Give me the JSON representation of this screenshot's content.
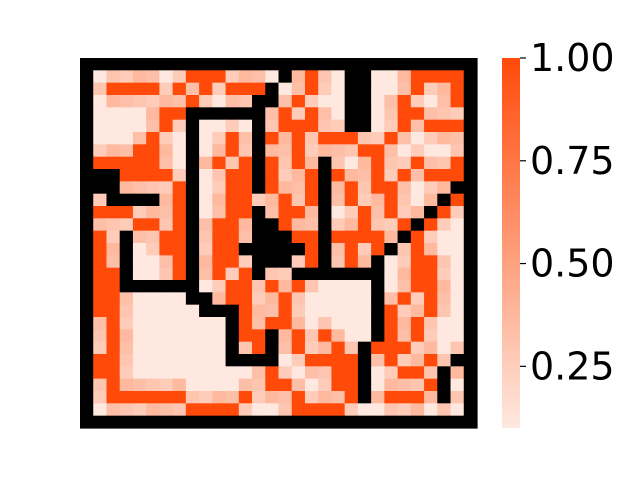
{
  "chart_data": {
    "type": "heatmap",
    "title": "",
    "xlabel": "",
    "ylabel": "",
    "grid_size": 30,
    "value_range": [
      0.1,
      1.0
    ],
    "colorscale": {
      "low": "#fee8df",
      "high": "#ff4a0a",
      "wall": "#000000"
    },
    "colorbar": {
      "position": "right",
      "ticks": [
        {
          "value": 0.25,
          "label": "0.25"
        },
        {
          "value": 0.5,
          "label": "0.50"
        },
        {
          "value": 0.75,
          "label": "0.75"
        },
        {
          "value": 1.0,
          "label": "1.00"
        }
      ]
    },
    "walls": {
      "border": true,
      "segments": [
        {
          "orientation": "h",
          "y": 15,
          "x": [
            12,
            16
          ]
        },
        {
          "orientation": "v",
          "x": 14,
          "y": [
            2,
            3
          ]
        },
        {
          "orientation": "v",
          "x": 13,
          "y": [
            3,
            4
          ]
        },
        {
          "orientation": "h",
          "y": 4,
          "x": [
            8,
            12
          ]
        },
        {
          "orientation": "v",
          "x": 8,
          "y": [
            4,
            19
          ]
        },
        {
          "orientation": "h",
          "y": 19,
          "x": [
            8,
            9
          ]
        },
        {
          "orientation": "h",
          "y": 20,
          "x": [
            9,
            11
          ]
        },
        {
          "orientation": "v",
          "x": 11,
          "y": [
            20,
            24
          ]
        },
        {
          "orientation": "h",
          "y": 24,
          "x": [
            11,
            14
          ]
        },
        {
          "orientation": "v",
          "x": 14,
          "y": [
            22,
            24
          ]
        },
        {
          "orientation": "v",
          "x": 13,
          "y": [
            4,
            10
          ]
        },
        {
          "orientation": "v",
          "x": 13,
          "y": [
            12,
            17
          ]
        },
        {
          "orientation": "v",
          "x": 14,
          "y": [
            13,
            14
          ]
        },
        {
          "orientation": "h",
          "y": 14,
          "x": [
            14,
            15
          ]
        },
        {
          "orientation": "v",
          "x": 15,
          "y": [
            15,
            16
          ]
        },
        {
          "orientation": "h",
          "y": 17,
          "x": [
            16,
            22
          ]
        },
        {
          "orientation": "v",
          "x": 22,
          "y": [
            17,
            22
          ]
        },
        {
          "orientation": "h",
          "y": 22,
          "x": [
            22,
            22
          ]
        },
        {
          "orientation": "v",
          "x": 21,
          "y": [
            23,
            27
          ]
        },
        {
          "orientation": "v",
          "x": 18,
          "y": [
            8,
            16
          ]
        },
        {
          "orientation": "v",
          "x": 21,
          "y": [
            1,
            5
          ]
        },
        {
          "orientation": "h",
          "y": 5,
          "x": [
            20,
            21
          ]
        },
        {
          "orientation": "v",
          "x": 20,
          "y": [
            1,
            4
          ]
        },
        {
          "orientation": "v",
          "x": 29,
          "y": [
            7,
            23
          ]
        },
        {
          "orientation": "h",
          "y": 24,
          "x": [
            28,
            28
          ]
        },
        {
          "orientation": "v",
          "x": 27,
          "y": [
            25,
            27
          ]
        },
        {
          "orientation": "h",
          "y": 10,
          "x": [
            1,
            2
          ]
        },
        {
          "orientation": "h",
          "y": 9,
          "x": [
            1,
            2
          ]
        },
        {
          "orientation": "v",
          "x": 2,
          "y": [
            9,
            11
          ]
        },
        {
          "orientation": "h",
          "y": 11,
          "x": [
            2,
            5
          ]
        },
        {
          "orientation": "v",
          "x": 3,
          "y": [
            14,
            18
          ]
        },
        {
          "orientation": "h",
          "y": 18,
          "x": [
            3,
            8
          ]
        },
        {
          "orientation": "h",
          "y": 16,
          "x": [
            14,
            15
          ]
        },
        {
          "orientation": "diag",
          "from": [
            28,
            10
          ],
          "to": [
            22,
            16
          ]
        },
        {
          "orientation": "diag",
          "from": [
            15,
            1
          ],
          "to": [
            14,
            2
          ]
        },
        {
          "orientation": "diag",
          "from": [
            9,
            19
          ],
          "to": [
            11,
            21
          ]
        }
      ]
    },
    "flow": {
      "paths": [
        [
          [
            1,
            8
          ],
          [
            4,
            8
          ],
          [
            5,
            6
          ],
          [
            6,
            5
          ],
          [
            6,
            4
          ],
          [
            8,
            3
          ],
          [
            9,
            1
          ],
          [
            12,
            2
          ],
          [
            13,
            2
          ]
        ],
        [
          [
            1,
            12
          ],
          [
            3,
            12
          ],
          [
            5,
            13
          ],
          [
            6,
            14
          ],
          [
            7,
            16
          ],
          [
            7,
            17
          ]
        ],
        [
          [
            1,
            14
          ],
          [
            1,
            20
          ],
          [
            2,
            22
          ],
          [
            1,
            24
          ],
          [
            2,
            27
          ],
          [
            6,
            27
          ],
          [
            10,
            28
          ],
          [
            12,
            27
          ]
        ],
        [
          [
            1,
            16
          ],
          [
            2,
            17
          ],
          [
            2,
            26
          ]
        ],
        [
          [
            4,
            7
          ],
          [
            6,
            9
          ],
          [
            7,
            11
          ],
          [
            7,
            14
          ],
          [
            6,
            15
          ]
        ],
        [
          [
            3,
            9
          ],
          [
            6,
            9
          ]
        ],
        [
          [
            11,
            6
          ],
          [
            12,
            9
          ],
          [
            12,
            12
          ],
          [
            11,
            13
          ],
          [
            11,
            15
          ],
          [
            12,
            18
          ],
          [
            12,
            22
          ],
          [
            14,
            26
          ]
        ],
        [
          [
            10,
            8
          ],
          [
            11,
            10
          ],
          [
            10,
            14
          ],
          [
            10,
            17
          ],
          [
            11,
            19
          ]
        ],
        [
          [
            14,
            6
          ],
          [
            15,
            4
          ],
          [
            16,
            5
          ],
          [
            16,
            8
          ],
          [
            17,
            9
          ],
          [
            17,
            11
          ],
          [
            16,
            12
          ],
          [
            15,
            13
          ],
          [
            17,
            15
          ],
          [
            17,
            16
          ]
        ],
        [
          [
            13,
            8
          ],
          [
            14,
            8
          ],
          [
            14,
            10
          ],
          [
            15,
            11
          ],
          [
            15,
            12
          ]
        ],
        [
          [
            15,
            16
          ],
          [
            16,
            17
          ],
          [
            15,
            19
          ],
          [
            15,
            21
          ],
          [
            16,
            23
          ],
          [
            17,
            24
          ],
          [
            19,
            24
          ]
        ],
        [
          [
            14,
            18
          ],
          [
            15,
            20
          ],
          [
            14,
            21
          ],
          [
            13,
            22
          ]
        ],
        [
          [
            15,
            26
          ],
          [
            16,
            28
          ],
          [
            19,
            28
          ],
          [
            20,
            27
          ],
          [
            20,
            24
          ],
          [
            22,
            23
          ],
          [
            24,
            23
          ],
          [
            25,
            21
          ],
          [
            26,
            20
          ],
          [
            26,
            17
          ],
          [
            25,
            14
          ],
          [
            26,
            12
          ],
          [
            27,
            12
          ],
          [
            28,
            10
          ],
          [
            28,
            8
          ]
        ],
        [
          [
            17,
            1
          ],
          [
            16,
            3
          ],
          [
            17,
            5
          ],
          [
            18,
            6
          ],
          [
            20,
            6
          ],
          [
            21,
            7
          ],
          [
            22,
            8
          ],
          [
            22,
            10
          ],
          [
            23,
            12
          ],
          [
            24,
            14
          ],
          [
            25,
            16
          ],
          [
            25,
            18
          ]
        ],
        [
          [
            22,
            7
          ],
          [
            23,
            6
          ],
          [
            24,
            5
          ],
          [
            24,
            3
          ],
          [
            25,
            1
          ],
          [
            28,
            1
          ],
          [
            28,
            3
          ]
        ],
        [
          [
            19,
            9
          ],
          [
            20,
            11
          ],
          [
            21,
            13
          ],
          [
            22,
            14
          ],
          [
            22,
            15
          ]
        ],
        [
          [
            23,
            10
          ],
          [
            24,
            9
          ],
          [
            25,
            8
          ],
          [
            26,
            9
          ],
          [
            27,
            9
          ],
          [
            28,
            8
          ]
        ],
        [
          [
            16,
            14
          ],
          [
            18,
            13
          ],
          [
            19,
            14
          ],
          [
            21,
            14
          ]
        ],
        [
          [
            23,
            24
          ],
          [
            24,
            25
          ],
          [
            26,
            24
          ],
          [
            27,
            25
          ],
          [
            28,
            24
          ]
        ],
        [
          [
            23,
            27
          ],
          [
            25,
            27
          ],
          [
            26,
            26
          ],
          [
            27,
            27
          ]
        ],
        [
          [
            2,
            2
          ],
          [
            5,
            2
          ]
        ],
        [
          [
            7,
            2
          ],
          [
            8,
            1
          ],
          [
            10,
            1
          ]
        ],
        [
          [
            25,
            4
          ],
          [
            27,
            5
          ],
          [
            28,
            5
          ]
        ],
        [
          [
            20,
            15
          ],
          [
            20,
            16
          ]
        ],
        [
          [
            24,
            19
          ],
          [
            23,
            20
          ],
          [
            23,
            22
          ]
        ],
        [
          [
            18,
            22
          ],
          [
            19,
            23
          ],
          [
            19,
            26
          ]
        ]
      ]
    }
  }
}
